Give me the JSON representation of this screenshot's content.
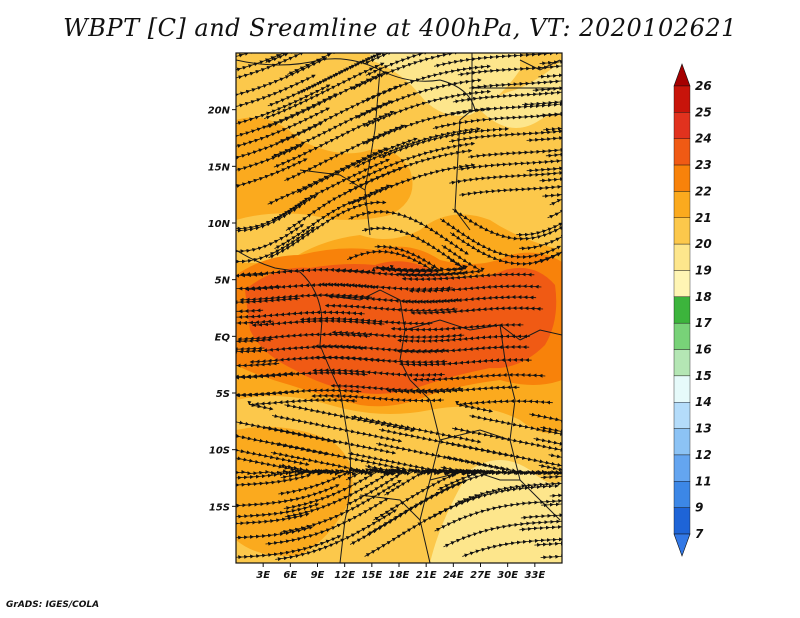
{
  "title": "WBPT [C] and Sreamline at 400hPa, VT: 2020102621",
  "credit": "GrADS: IGES/COLA",
  "map": {
    "lon_range": [
      0,
      36
    ],
    "lat_range": [
      -20,
      25
    ],
    "x_ticks": [
      {
        "value": 3,
        "label": "3E"
      },
      {
        "value": 6,
        "label": "6E"
      },
      {
        "value": 9,
        "label": "9E"
      },
      {
        "value": 12,
        "label": "12E"
      },
      {
        "value": 15,
        "label": "15E"
      },
      {
        "value": 18,
        "label": "18E"
      },
      {
        "value": 21,
        "label": "21E"
      },
      {
        "value": 24,
        "label": "24E"
      },
      {
        "value": 27,
        "label": "27E"
      },
      {
        "value": 30,
        "label": "30E"
      },
      {
        "value": 33,
        "label": "33E"
      }
    ],
    "y_ticks": [
      {
        "value": 20,
        "label": "20N"
      },
      {
        "value": 15,
        "label": "15N"
      },
      {
        "value": 10,
        "label": "10N"
      },
      {
        "value": 5,
        "label": "5N"
      },
      {
        "value": 0,
        "label": "EQ"
      },
      {
        "value": -5,
        "label": "5S"
      },
      {
        "value": -10,
        "label": "10S"
      },
      {
        "value": -15,
        "label": "15S"
      }
    ]
  },
  "colorbar": {
    "levels": [
      "26",
      "25",
      "24",
      "23",
      "22",
      "21",
      "20",
      "19",
      "18",
      "17",
      "16",
      "15",
      "14",
      "13",
      "12",
      "11",
      "9",
      "7"
    ],
    "colors": [
      "#a50000",
      "#c8140a",
      "#e1321e",
      "#f05a14",
      "#f8820a",
      "#fbaa1e",
      "#fcc84b",
      "#fde68c",
      "#fff5b4",
      "#3cb43c",
      "#78d278",
      "#b4e6b4",
      "#e6fafa",
      "#b4dcfa",
      "#8cc3f5",
      "#64a5f0",
      "#3c87e6",
      "#1e64d7",
      "#3278e6"
    ]
  }
}
